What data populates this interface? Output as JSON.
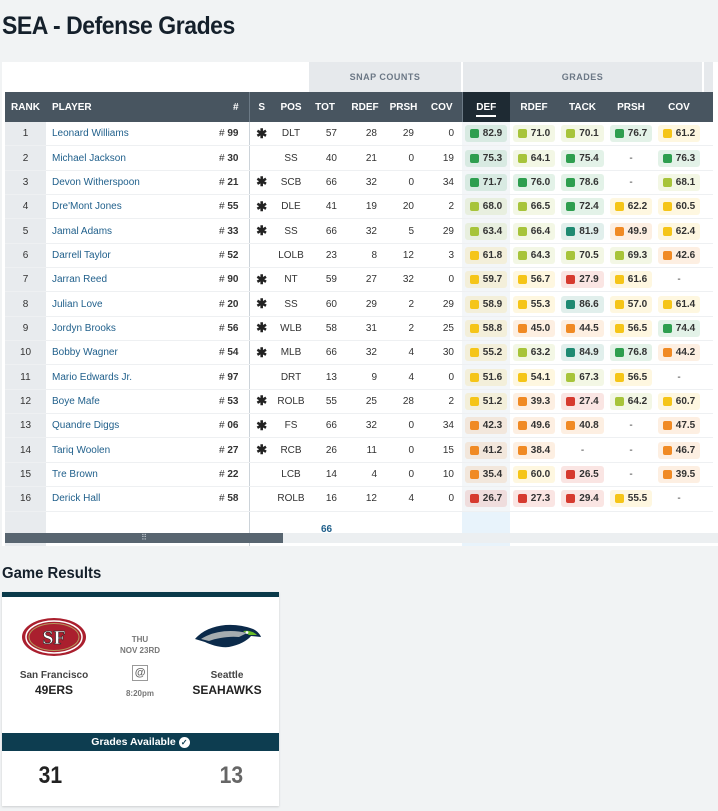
{
  "page_title": "SEA - Defense Grades",
  "group_headers": {
    "snap": "SNAP COUNTS",
    "grades": "GRADES"
  },
  "columns": [
    "RANK",
    "PLAYER",
    "#",
    "S",
    "POS",
    "TOT",
    "RDEF",
    "PRSH",
    "COV",
    "DEF",
    "RDEF",
    "TACK",
    "PRSH",
    "COV"
  ],
  "colors": {
    "green": "#2e9e4f",
    "lightgreen": "#a7c43a",
    "yellow": "#f5c518",
    "orange": "#f08a24",
    "red": "#d63a2f",
    "teal": "#1e8a72"
  },
  "rows": [
    {
      "rank": "1",
      "player": "Leonard Williams",
      "num": "99",
      "s": "✱",
      "pos": "DLT",
      "tot": "57",
      "rdef": "28",
      "prsh": "29",
      "cov": "0",
      "g": [
        [
          "82.9",
          "green"
        ],
        [
          "71.0",
          "lightgreen"
        ],
        [
          "70.1",
          "lightgreen"
        ],
        [
          "76.7",
          "green"
        ],
        [
          "61.2",
          "yellow"
        ]
      ]
    },
    {
      "rank": "2",
      "player": "Michael Jackson",
      "num": "30",
      "s": "",
      "pos": "SS",
      "tot": "40",
      "rdef": "21",
      "prsh": "0",
      "cov": "19",
      "g": [
        [
          "75.3",
          "green"
        ],
        [
          "64.1",
          "lightgreen"
        ],
        [
          "75.4",
          "green"
        ],
        [
          "-",
          ""
        ],
        [
          "76.3",
          "green"
        ]
      ]
    },
    {
      "rank": "3",
      "player": "Devon Witherspoon",
      "num": "21",
      "s": "✱",
      "pos": "SCB",
      "tot": "66",
      "rdef": "32",
      "prsh": "0",
      "cov": "34",
      "g": [
        [
          "71.7",
          "green"
        ],
        [
          "76.0",
          "green"
        ],
        [
          "78.6",
          "green"
        ],
        [
          "-",
          ""
        ],
        [
          "68.1",
          "lightgreen"
        ]
      ]
    },
    {
      "rank": "4",
      "player": "Dre'Mont Jones",
      "num": "55",
      "s": "✱",
      "pos": "DLE",
      "tot": "41",
      "rdef": "19",
      "prsh": "20",
      "cov": "2",
      "g": [
        [
          "68.0",
          "lightgreen"
        ],
        [
          "66.5",
          "lightgreen"
        ],
        [
          "72.4",
          "green"
        ],
        [
          "62.2",
          "yellow"
        ],
        [
          "60.5",
          "yellow"
        ]
      ]
    },
    {
      "rank": "5",
      "player": "Jamal Adams",
      "num": "33",
      "s": "✱",
      "pos": "SS",
      "tot": "66",
      "rdef": "32",
      "prsh": "5",
      "cov": "29",
      "g": [
        [
          "63.4",
          "lightgreen"
        ],
        [
          "66.4",
          "lightgreen"
        ],
        [
          "81.9",
          "teal"
        ],
        [
          "49.9",
          "orange"
        ],
        [
          "62.4",
          "yellow"
        ]
      ]
    },
    {
      "rank": "6",
      "player": "Darrell Taylor",
      "num": "52",
      "s": "",
      "pos": "LOLB",
      "tot": "23",
      "rdef": "8",
      "prsh": "12",
      "cov": "3",
      "g": [
        [
          "61.8",
          "yellow"
        ],
        [
          "64.3",
          "lightgreen"
        ],
        [
          "70.5",
          "lightgreen"
        ],
        [
          "69.3",
          "lightgreen"
        ],
        [
          "42.6",
          "orange"
        ]
      ]
    },
    {
      "rank": "7",
      "player": "Jarran Reed",
      "num": "90",
      "s": "✱",
      "pos": "NT",
      "tot": "59",
      "rdef": "27",
      "prsh": "32",
      "cov": "0",
      "g": [
        [
          "59.7",
          "yellow"
        ],
        [
          "56.7",
          "yellow"
        ],
        [
          "27.9",
          "red"
        ],
        [
          "61.6",
          "yellow"
        ],
        [
          "-",
          ""
        ]
      ]
    },
    {
      "rank": "8",
      "player": "Julian Love",
      "num": "20",
      "s": "✱",
      "pos": "SS",
      "tot": "60",
      "rdef": "29",
      "prsh": "2",
      "cov": "29",
      "g": [
        [
          "58.9",
          "yellow"
        ],
        [
          "55.3",
          "yellow"
        ],
        [
          "86.6",
          "teal"
        ],
        [
          "57.0",
          "yellow"
        ],
        [
          "61.4",
          "yellow"
        ]
      ]
    },
    {
      "rank": "9",
      "player": "Jordyn Brooks",
      "num": "56",
      "s": "✱",
      "pos": "WLB",
      "tot": "58",
      "rdef": "31",
      "prsh": "2",
      "cov": "25",
      "g": [
        [
          "58.8",
          "yellow"
        ],
        [
          "45.0",
          "orange"
        ],
        [
          "44.5",
          "orange"
        ],
        [
          "56.5",
          "yellow"
        ],
        [
          "74.4",
          "green"
        ]
      ]
    },
    {
      "rank": "10",
      "player": "Bobby Wagner",
      "num": "54",
      "s": "✱",
      "pos": "MLB",
      "tot": "66",
      "rdef": "32",
      "prsh": "4",
      "cov": "30",
      "g": [
        [
          "55.2",
          "yellow"
        ],
        [
          "63.2",
          "lightgreen"
        ],
        [
          "84.9",
          "teal"
        ],
        [
          "76.8",
          "green"
        ],
        [
          "44.2",
          "orange"
        ]
      ]
    },
    {
      "rank": "11",
      "player": "Mario Edwards Jr.",
      "num": "97",
      "s": "",
      "pos": "DRT",
      "tot": "13",
      "rdef": "9",
      "prsh": "4",
      "cov": "0",
      "g": [
        [
          "51.6",
          "yellow"
        ],
        [
          "54.1",
          "yellow"
        ],
        [
          "67.3",
          "lightgreen"
        ],
        [
          "56.5",
          "yellow"
        ],
        [
          "-",
          ""
        ]
      ]
    },
    {
      "rank": "12",
      "player": "Boye Mafe",
      "num": "53",
      "s": "✱",
      "pos": "ROLB",
      "tot": "55",
      "rdef": "25",
      "prsh": "28",
      "cov": "2",
      "g": [
        [
          "51.2",
          "yellow"
        ],
        [
          "39.3",
          "orange"
        ],
        [
          "27.4",
          "red"
        ],
        [
          "64.2",
          "lightgreen"
        ],
        [
          "60.7",
          "yellow"
        ]
      ]
    },
    {
      "rank": "13",
      "player": "Quandre Diggs",
      "num": "06",
      "s": "✱",
      "pos": "FS",
      "tot": "66",
      "rdef": "32",
      "prsh": "0",
      "cov": "34",
      "g": [
        [
          "42.3",
          "orange"
        ],
        [
          "49.6",
          "orange"
        ],
        [
          "40.8",
          "orange"
        ],
        [
          "-",
          ""
        ],
        [
          "47.5",
          "orange"
        ]
      ]
    },
    {
      "rank": "14",
      "player": "Tariq Woolen",
      "num": "27",
      "s": "✱",
      "pos": "RCB",
      "tot": "26",
      "rdef": "11",
      "prsh": "0",
      "cov": "15",
      "g": [
        [
          "41.2",
          "orange"
        ],
        [
          "38.4",
          "orange"
        ],
        [
          "-",
          ""
        ],
        [
          "-",
          ""
        ],
        [
          "46.7",
          "orange"
        ]
      ]
    },
    {
      "rank": "15",
      "player": "Tre Brown",
      "num": "22",
      "s": "",
      "pos": "LCB",
      "tot": "14",
      "rdef": "4",
      "prsh": "0",
      "cov": "10",
      "g": [
        [
          "35.4",
          "orange"
        ],
        [
          "60.0",
          "yellow"
        ],
        [
          "26.5",
          "red"
        ],
        [
          "-",
          ""
        ],
        [
          "39.5",
          "orange"
        ]
      ]
    },
    {
      "rank": "16",
      "player": "Derick Hall",
      "num": "58",
      "s": "",
      "pos": "ROLB",
      "tot": "16",
      "rdef": "12",
      "prsh": "4",
      "cov": "0",
      "g": [
        [
          "26.7",
          "red"
        ],
        [
          "27.3",
          "red"
        ],
        [
          "29.4",
          "red"
        ],
        [
          "55.5",
          "yellow"
        ],
        [
          "-",
          ""
        ]
      ]
    }
  ],
  "footer": {
    "total": "66"
  },
  "game_results": {
    "section_title": "Game Results",
    "home": {
      "city": "San Francisco",
      "name": "49ERS",
      "score": "31",
      "logo_text": "SF"
    },
    "away": {
      "city": "Seattle",
      "name": "SEAHAWKS",
      "score": "13"
    },
    "day": "THU",
    "date": "NOV 23RD",
    "at_symbol": "@",
    "time": "8:20pm",
    "grades_available": "Grades Available"
  }
}
